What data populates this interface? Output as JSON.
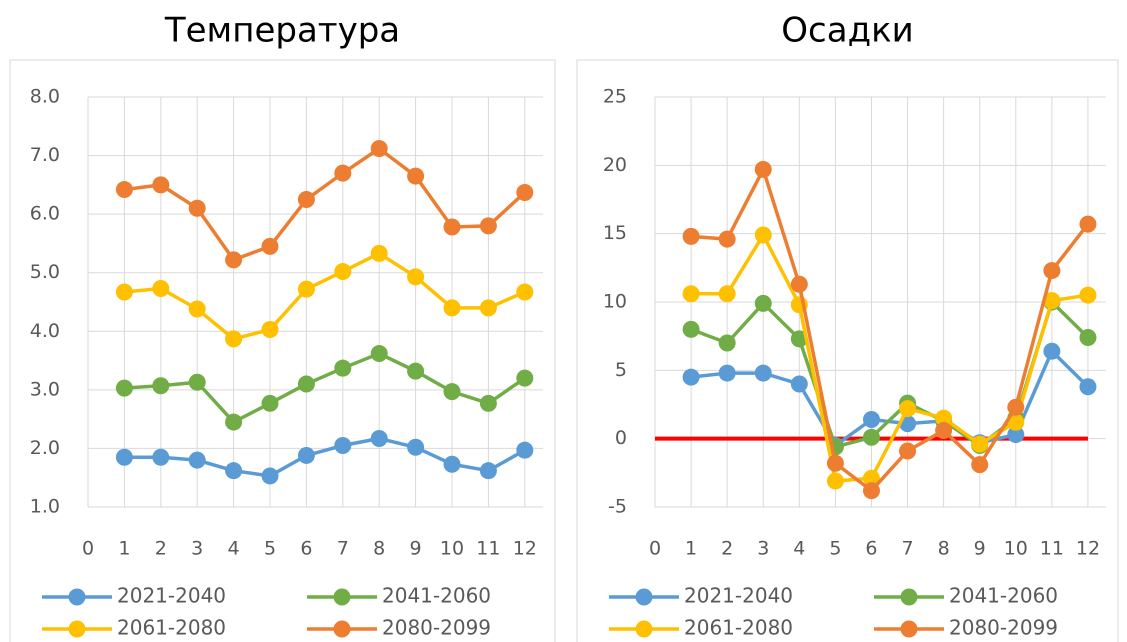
{
  "chart_data": [
    {
      "type": "line",
      "title": "Температура",
      "x": [
        1,
        2,
        3,
        4,
        5,
        6,
        7,
        8,
        9,
        10,
        11,
        12
      ],
      "xlim": [
        0,
        12.5
      ],
      "xticks": [
        0,
        1,
        2,
        3,
        4,
        5,
        6,
        7,
        8,
        9,
        10,
        11,
        12
      ],
      "ylim": [
        1,
        8
      ],
      "yticks": [
        {
          "value": 1,
          "label": "1.0"
        },
        {
          "value": 2,
          "label": "2.0"
        },
        {
          "value": 3,
          "label": "3.0"
        },
        {
          "value": 4,
          "label": "4.0"
        },
        {
          "value": 5,
          "label": "5.0"
        },
        {
          "value": 6,
          "label": "6.0"
        },
        {
          "value": 7,
          "label": "7.0"
        },
        {
          "value": 8,
          "label": "8.0"
        }
      ],
      "grid": true,
      "series": [
        {
          "name": "2021-2040",
          "color": "#5b9bd5",
          "values": [
            1.85,
            1.85,
            1.8,
            1.62,
            1.53,
            1.88,
            2.05,
            2.17,
            2.02,
            1.73,
            1.62,
            1.97
          ]
        },
        {
          "name": "2041-2060",
          "color": "#70ad47",
          "values": [
            3.03,
            3.07,
            3.13,
            2.45,
            2.77,
            3.1,
            3.37,
            3.62,
            3.32,
            2.97,
            2.77,
            3.2
          ]
        },
        {
          "name": "2061-2080",
          "color": "#ffc000",
          "values": [
            4.67,
            4.73,
            4.38,
            3.87,
            4.03,
            4.72,
            5.02,
            5.33,
            4.93,
            4.4,
            4.4,
            4.67
          ]
        },
        {
          "name": "2080-2099",
          "color": "#ed7d31",
          "values": [
            6.42,
            6.5,
            6.1,
            5.22,
            5.45,
            6.25,
            6.7,
            7.12,
            6.65,
            5.78,
            5.8,
            6.37
          ]
        }
      ]
    },
    {
      "type": "line",
      "title": "Осадки",
      "x": [
        1,
        2,
        3,
        4,
        5,
        6,
        7,
        8,
        9,
        10,
        11,
        12
      ],
      "xlim": [
        0,
        12.5
      ],
      "xticks": [
        0,
        1,
        2,
        3,
        4,
        5,
        6,
        7,
        8,
        9,
        10,
        11,
        12
      ],
      "ylim": [
        -5,
        25
      ],
      "yticks": [
        -5,
        0,
        5,
        10,
        15,
        20,
        25
      ],
      "grid": true,
      "hlines": [
        {
          "value": 0,
          "color": "#ff0000"
        }
      ],
      "series": [
        {
          "name": "2021-2040",
          "color": "#5b9bd5",
          "values": [
            4.5,
            4.8,
            4.8,
            4.0,
            -0.5,
            1.4,
            1.1,
            1.3,
            -0.3,
            0.3,
            6.4,
            3.8
          ]
        },
        {
          "name": "2041-2060",
          "color": "#70ad47",
          "values": [
            8.0,
            7.0,
            9.9,
            7.3,
            -0.6,
            0.1,
            2.6,
            1.3,
            -0.5,
            1.5,
            10.0,
            7.4
          ]
        },
        {
          "name": "2061-2080",
          "color": "#ffc000",
          "values": [
            10.6,
            10.6,
            14.9,
            9.8,
            -3.1,
            -2.9,
            2.2,
            1.5,
            -0.4,
            1.2,
            10.1,
            10.5
          ]
        },
        {
          "name": "2080-2099",
          "color": "#ed7d31",
          "values": [
            14.8,
            14.6,
            19.7,
            11.3,
            -1.8,
            -3.8,
            -0.9,
            0.6,
            -1.9,
            2.3,
            12.3,
            15.7
          ]
        }
      ]
    }
  ]
}
